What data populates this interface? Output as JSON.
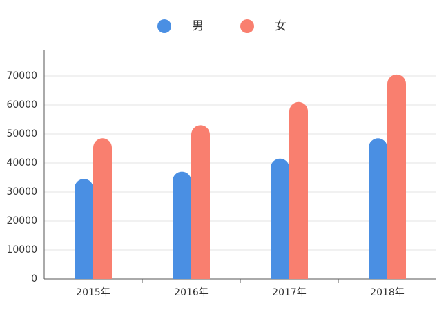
{
  "chart_data": {
    "type": "bar",
    "categories": [
      "2015年",
      "2016年",
      "2017年",
      "2018年"
    ],
    "series": [
      {
        "name": "男",
        "color": "#4a8fe3",
        "values": [
          34500,
          37000,
          41500,
          48500
        ]
      },
      {
        "name": "女",
        "color": "#f97f6f",
        "values": [
          48500,
          53000,
          61000,
          70500
        ]
      }
    ],
    "ylim": [
      0,
      80000
    ],
    "yticks": [
      0,
      10000,
      20000,
      30000,
      40000,
      50000,
      60000,
      70000
    ],
    "grid": true,
    "legend": "top"
  }
}
